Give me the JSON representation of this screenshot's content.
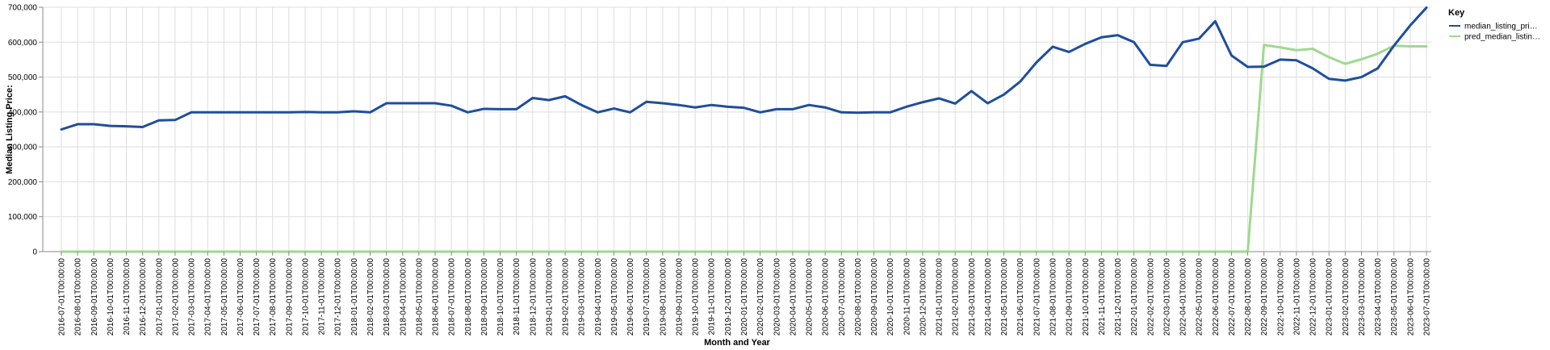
{
  "chart_data": {
    "type": "line",
    "xlabel": "Month and Year",
    "ylabel": "Median Listing Price:",
    "ylim": [
      0,
      700000
    ],
    "yticks": [
      "0",
      "100,000",
      "200,000",
      "300,000",
      "400,000",
      "500,000",
      "600,000",
      "700,000"
    ],
    "grid": true,
    "legend": {
      "title": "Key",
      "placement": "right",
      "entries": [
        "median_listing_pri…",
        "pred_median_listin…"
      ]
    },
    "x": [
      "2016-07-01T00:00:00",
      "2016-08-01T00:00:00",
      "2016-09-01T00:00:00",
      "2016-10-01T00:00:00",
      "2016-11-01T00:00:00",
      "2016-12-01T00:00:00",
      "2017-01-01T00:00:00",
      "2017-02-01T00:00:00",
      "2017-03-01T00:00:00",
      "2017-04-01T00:00:00",
      "2017-05-01T00:00:00",
      "2017-06-01T00:00:00",
      "2017-07-01T00:00:00",
      "2017-08-01T00:00:00",
      "2017-09-01T00:00:00",
      "2017-10-01T00:00:00",
      "2017-11-01T00:00:00",
      "2017-12-01T00:00:00",
      "2018-01-01T00:00:00",
      "2018-02-01T00:00:00",
      "2018-03-01T00:00:00",
      "2018-04-01T00:00:00",
      "2018-05-01T00:00:00",
      "2018-06-01T00:00:00",
      "2018-07-01T00:00:00",
      "2018-08-01T00:00:00",
      "2018-09-01T00:00:00",
      "2018-10-01T00:00:00",
      "2018-11-01T00:00:00",
      "2018-12-01T00:00:00",
      "2019-01-01T00:00:00",
      "2019-02-01T00:00:00",
      "2019-03-01T00:00:00",
      "2019-04-01T00:00:00",
      "2019-05-01T00:00:00",
      "2019-06-01T00:00:00",
      "2019-07-01T00:00:00",
      "2019-08-01T00:00:00",
      "2019-09-01T00:00:00",
      "2019-10-01T00:00:00",
      "2019-11-01T00:00:00",
      "2019-12-01T00:00:00",
      "2020-01-01T00:00:00",
      "2020-02-01T00:00:00",
      "2020-03-01T00:00:00",
      "2020-04-01T00:00:00",
      "2020-05-01T00:00:00",
      "2020-06-01T00:00:00",
      "2020-07-01T00:00:00",
      "2020-08-01T00:00:00",
      "2020-09-01T00:00:00",
      "2020-10-01T00:00:00",
      "2020-11-01T00:00:00",
      "2020-12-01T00:00:00",
      "2021-01-01T00:00:00",
      "2021-02-01T00:00:00",
      "2021-03-01T00:00:00",
      "2021-04-01T00:00:00",
      "2021-05-01T00:00:00",
      "2021-06-01T00:00:00",
      "2021-07-01T00:00:00",
      "2021-08-01T00:00:00",
      "2021-09-01T00:00:00",
      "2021-10-01T00:00:00",
      "2021-11-01T00:00:00",
      "2021-12-01T00:00:00",
      "2022-01-01T00:00:00",
      "2022-02-01T00:00:00",
      "2022-03-01T00:00:00",
      "2022-04-01T00:00:00",
      "2022-05-01T00:00:00",
      "2022-06-01T00:00:00",
      "2022-07-01T00:00:00",
      "2022-08-01T00:00:00",
      "2022-09-01T00:00:00",
      "2022-10-01T00:00:00",
      "2022-11-01T00:00:00",
      "2022-12-01T00:00:00",
      "2023-01-01T00:00:00",
      "2023-02-01T00:00:00",
      "2023-03-01T00:00:00",
      "2023-04-01T00:00:00",
      "2023-05-01T00:00:00",
      "2023-06-01T00:00:00",
      "2023-07-01T00:00:00"
    ],
    "series": [
      {
        "name": "median_listing_pri…",
        "color": "#1f4e9c",
        "values": [
          350000,
          365000,
          365000,
          360000,
          359000,
          357000,
          376000,
          377000,
          399000,
          399000,
          399000,
          399000,
          399000,
          399000,
          399000,
          400000,
          399000,
          399000,
          402000,
          399000,
          425000,
          425000,
          425000,
          425000,
          418000,
          399000,
          409000,
          408000,
          408000,
          440000,
          434000,
          445000,
          420000,
          399000,
          410000,
          399000,
          429000,
          425000,
          420000,
          413000,
          420000,
          415000,
          412000,
          399000,
          408000,
          408000,
          420000,
          413000,
          399000,
          398000,
          399000,
          399000,
          415000,
          428000,
          439000,
          424000,
          460000,
          425000,
          450000,
          487000,
          542000,
          587000,
          572000,
          595000,
          614000,
          620000,
          600000,
          535000,
          532000,
          600000,
          610000,
          660000,
          562000,
          529000,
          530000,
          550000,
          548000,
          525000,
          495000,
          490000,
          500000,
          525000,
          590000,
          648000,
          699000
        ]
      },
      {
        "name": "pred_median_listin…",
        "color": "#9ed98f",
        "values": [
          0,
          0,
          0,
          0,
          0,
          0,
          0,
          0,
          0,
          0,
          0,
          0,
          0,
          0,
          0,
          0,
          0,
          0,
          0,
          0,
          0,
          0,
          0,
          0,
          0,
          0,
          0,
          0,
          0,
          0,
          0,
          0,
          0,
          0,
          0,
          0,
          0,
          0,
          0,
          0,
          0,
          0,
          0,
          0,
          0,
          0,
          0,
          0,
          0,
          0,
          0,
          0,
          0,
          0,
          0,
          0,
          0,
          0,
          0,
          0,
          0,
          0,
          0,
          0,
          0,
          0,
          0,
          0,
          0,
          0,
          0,
          0,
          0,
          0,
          592000,
          585000,
          577000,
          581000,
          557000,
          538000,
          551000,
          567000,
          590000,
          588000,
          588000
        ]
      }
    ]
  }
}
